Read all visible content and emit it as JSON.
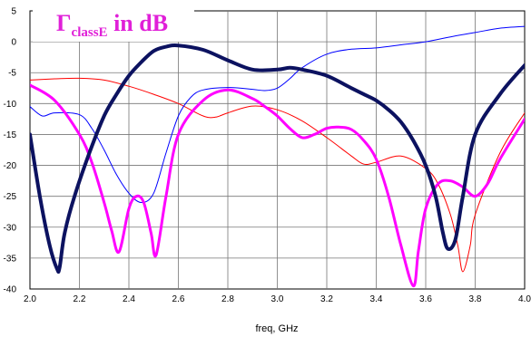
{
  "chart_data": {
    "type": "line",
    "title": {
      "symbol": "Γ",
      "subscript": "classE",
      "suffix": " in dB",
      "color": "#e020d8"
    },
    "xlabel": "freq, GHz",
    "ylabel": "",
    "xlim": [
      2.0,
      4.0
    ],
    "ylim": [
      -40,
      5
    ],
    "xticks": [
      "2.0",
      "2.2",
      "2.4",
      "2.6",
      "2.8",
      "3.0",
      "3.2",
      "3.4",
      "3.6",
      "3.8",
      "4.0"
    ],
    "yticks": [
      "5",
      "0",
      "-5",
      "-10",
      "-15",
      "-20",
      "-25",
      "-30",
      "-35",
      "-40"
    ],
    "grid": true,
    "series": [
      {
        "color": "#ff0000",
        "width": 1,
        "x": [
          2.0,
          2.1,
          2.2,
          2.3,
          2.4,
          2.5,
          2.6,
          2.7,
          2.75,
          2.8,
          2.9,
          3.0,
          3.1,
          3.2,
          3.3,
          3.35,
          3.4,
          3.5,
          3.6,
          3.65,
          3.7,
          3.73,
          3.75,
          3.78,
          3.8,
          3.9,
          4.0
        ],
        "y": [
          -6.2,
          -6.0,
          -5.9,
          -6.2,
          -7.2,
          -8.5,
          -10.0,
          -12.0,
          -12.2,
          -11.5,
          -10.4,
          -11.0,
          -12.8,
          -15.5,
          -18.5,
          -19.8,
          -19.5,
          -18.5,
          -20.5,
          -23.0,
          -28.0,
          -33.0,
          -37.2,
          -33.0,
          -28.0,
          -18.0,
          -11.5
        ]
      },
      {
        "color": "#0000ff",
        "width": 1,
        "x": [
          2.0,
          2.05,
          2.1,
          2.2,
          2.25,
          2.3,
          2.35,
          2.4,
          2.45,
          2.5,
          2.55,
          2.6,
          2.65,
          2.7,
          2.8,
          2.9,
          2.95,
          3.0,
          3.05,
          3.1,
          3.2,
          3.3,
          3.4,
          3.5,
          3.6,
          3.7,
          3.8,
          3.9,
          4.0
        ],
        "y": [
          -10.5,
          -12.0,
          -11.5,
          -11.8,
          -14.0,
          -17.5,
          -21.5,
          -24.5,
          -26.0,
          -24.5,
          -18.0,
          -12.0,
          -9.0,
          -7.8,
          -7.4,
          -7.7,
          -7.9,
          -7.5,
          -6.0,
          -4.2,
          -2.0,
          -1.2,
          -1.0,
          -0.5,
          0.0,
          0.8,
          1.5,
          2.2,
          2.5
        ]
      },
      {
        "color": "#ff00ff",
        "width": 3,
        "x": [
          2.0,
          2.1,
          2.2,
          2.25,
          2.3,
          2.33,
          2.36,
          2.4,
          2.43,
          2.46,
          2.49,
          2.51,
          2.55,
          2.6,
          2.7,
          2.8,
          2.9,
          2.95,
          3.0,
          3.05,
          3.1,
          3.15,
          3.2,
          3.25,
          3.3,
          3.35,
          3.4,
          3.45,
          3.5,
          3.55,
          3.57,
          3.6,
          3.65,
          3.7,
          3.75,
          3.8,
          3.85,
          3.9,
          4.0
        ],
        "y": [
          -7.0,
          -9.5,
          -15.0,
          -19.5,
          -26.0,
          -30.5,
          -34.0,
          -27.0,
          -25.0,
          -26.0,
          -31.0,
          -34.5,
          -25.0,
          -15.0,
          -9.5,
          -7.8,
          -9.2,
          -10.5,
          -12.0,
          -14.0,
          -15.5,
          -15.0,
          -14.0,
          -13.8,
          -14.2,
          -16.0,
          -19.0,
          -25.0,
          -33.0,
          -39.5,
          -34.0,
          -27.0,
          -23.0,
          -22.5,
          -23.5,
          -25.0,
          -23.0,
          -19.0,
          -12.5
        ]
      },
      {
        "color": "#0c1260",
        "width": 4,
        "x": [
          2.0,
          2.04,
          2.08,
          2.11,
          2.12,
          2.14,
          2.18,
          2.24,
          2.3,
          2.35,
          2.4,
          2.45,
          2.5,
          2.55,
          2.6,
          2.7,
          2.8,
          2.9,
          3.0,
          3.05,
          3.1,
          3.2,
          3.3,
          3.35,
          3.4,
          3.45,
          3.5,
          3.55,
          3.6,
          3.64,
          3.67,
          3.69,
          3.72,
          3.75,
          3.8,
          3.9,
          4.0
        ],
        "y": [
          -15.0,
          -25.0,
          -33.0,
          -36.8,
          -36.5,
          -31.0,
          -25.0,
          -18.0,
          -12.0,
          -8.5,
          -5.5,
          -3.3,
          -1.5,
          -0.8,
          -0.6,
          -1.3,
          -3.0,
          -4.5,
          -4.5,
          -4.2,
          -4.5,
          -5.5,
          -7.5,
          -8.5,
          -9.5,
          -11.0,
          -13.0,
          -16.0,
          -20.0,
          -25.0,
          -31.0,
          -33.5,
          -32.0,
          -25.0,
          -15.0,
          -8.5,
          -3.8
        ]
      }
    ]
  }
}
